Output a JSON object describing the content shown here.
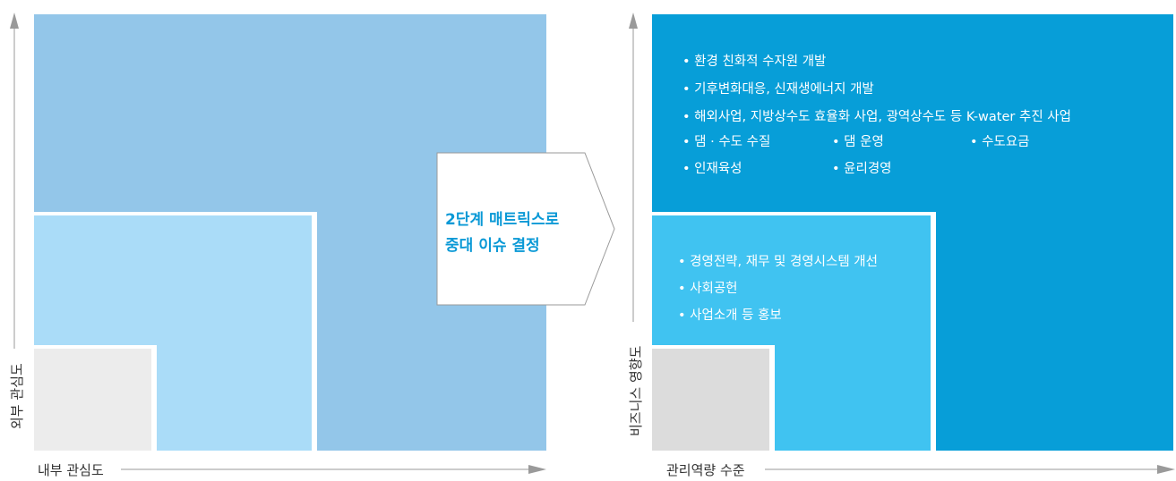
{
  "left_matrix": {
    "x_axis_label": "내부 관심도",
    "y_axis_label": "외부 관심도"
  },
  "callout": {
    "line1": "2단계 매트릭스로",
    "line2": "중대 이슈 결정"
  },
  "right_matrix": {
    "x_axis_label": "관리역량 수준",
    "y_axis_label": "비즈니스 영향도",
    "top_items": [
      "• 환경 친화적 수자원 개발",
      "• 기후변화대응, 신재생에너지 개발",
      "• 해외사업, 지방상수도 효율화 사업, 광역상수도 등 K-water 추진 사업",
      "• 댐 · 수도 수질",
      "• 댐 운영",
      "• 수도요금",
      "• 인재육성",
      "• 윤리경영"
    ],
    "mid_items": [
      "• 경영전략, 재무 및 경영시스템 개선",
      "• 사회공헌",
      "• 사업소개 등 홍보"
    ]
  },
  "colors": {
    "left_outer": "#93c6e9",
    "left_mid": "#aadcf8",
    "left_inner": "#ececec",
    "right_outer": "#079ed8",
    "right_mid": "#40c3f1",
    "right_inner": "#dcdcdc",
    "callout_text": "#0a99d6",
    "axis": "#999999"
  }
}
